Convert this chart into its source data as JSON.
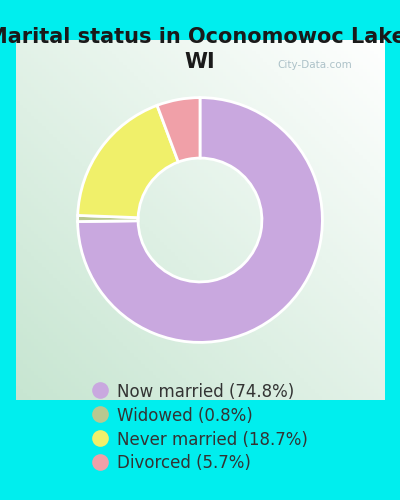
{
  "title": "Marital status in Oconomowoc Lake,\nWI",
  "slices": [
    74.8,
    0.8,
    18.7,
    5.7
  ],
  "labels": [
    "Now married (74.8%)",
    "Widowed (0.8%)",
    "Never married (18.7%)",
    "Divorced (5.7%)"
  ],
  "colors": [
    "#c9a8df",
    "#b8c890",
    "#f0f06a",
    "#f0a0a8"
  ],
  "background_color": "#00eeee",
  "chart_bg_left": "#c8e8d0",
  "chart_bg_right": "#f0f8f0",
  "title_fontsize": 15,
  "legend_fontsize": 12,
  "donut_width": 0.42,
  "start_angle": 90
}
